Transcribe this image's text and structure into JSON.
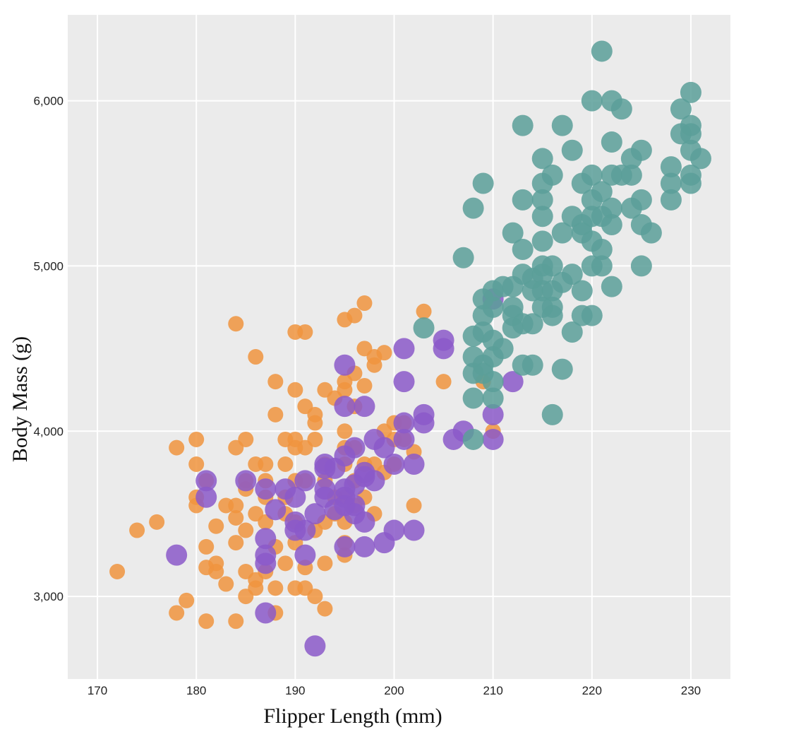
{
  "chart_data": {
    "type": "scatter",
    "title": "",
    "xlabel": "Flipper Length (mm)",
    "ylabel": "Body Mass (g)",
    "xlim": [
      167,
      234
    ],
    "ylim": [
      2500,
      6520
    ],
    "x_ticks": [
      170,
      180,
      190,
      200,
      210,
      220,
      230
    ],
    "x_tick_labels": [
      "170",
      "180",
      "190",
      "200",
      "210",
      "220",
      "230"
    ],
    "y_ticks": [
      3000,
      4000,
      5000,
      6000
    ],
    "y_tick_labels": [
      "3,000",
      "4,000",
      "5,000",
      "6,000"
    ],
    "grid": true,
    "legend": "none",
    "background": "#ebebeb",
    "series": [
      {
        "color": "#f0943e",
        "marker_size": "small",
        "points": [
          [
            172,
            3150
          ],
          [
            174,
            3400
          ],
          [
            176,
            3450
          ],
          [
            178,
            3900
          ],
          [
            178,
            2900
          ],
          [
            179,
            2975
          ],
          [
            180,
            3950
          ],
          [
            180,
            3800
          ],
          [
            180,
            3550
          ],
          [
            180,
            3600
          ],
          [
            181,
            3300
          ],
          [
            181,
            3175
          ],
          [
            181,
            2850
          ],
          [
            181,
            3700
          ],
          [
            182,
            3200
          ],
          [
            182,
            3150
          ],
          [
            182,
            3425
          ],
          [
            183,
            3550
          ],
          [
            183,
            3075
          ],
          [
            184,
            4650
          ],
          [
            184,
            3900
          ],
          [
            184,
            3550
          ],
          [
            184,
            3475
          ],
          [
            184,
            3325
          ],
          [
            184,
            2850
          ],
          [
            185,
            3950
          ],
          [
            185,
            3700
          ],
          [
            185,
            3650
          ],
          [
            185,
            3400
          ],
          [
            185,
            3150
          ],
          [
            185,
            3000
          ],
          [
            186,
            4450
          ],
          [
            186,
            3800
          ],
          [
            186,
            3500
          ],
          [
            186,
            3050
          ],
          [
            186,
            3100
          ],
          [
            187,
            3800
          ],
          [
            187,
            3700
          ],
          [
            187,
            3600
          ],
          [
            187,
            3450
          ],
          [
            187,
            3150
          ],
          [
            188,
            4300
          ],
          [
            188,
            4100
          ],
          [
            188,
            3300
          ],
          [
            188,
            3050
          ],
          [
            188,
            2900
          ],
          [
            189,
            3950
          ],
          [
            189,
            3800
          ],
          [
            189,
            3600
          ],
          [
            189,
            3500
          ],
          [
            189,
            3200
          ],
          [
            190,
            4600
          ],
          [
            190,
            4250
          ],
          [
            190,
            3950
          ],
          [
            190,
            3900
          ],
          [
            190,
            3700
          ],
          [
            190,
            3450
          ],
          [
            190,
            3325
          ],
          [
            190,
            3050
          ],
          [
            191,
            4600
          ],
          [
            191,
            4150
          ],
          [
            191,
            3900
          ],
          [
            191,
            3700
          ],
          [
            191,
            3175
          ],
          [
            191,
            3050
          ],
          [
            192,
            4100
          ],
          [
            192,
            4050
          ],
          [
            192,
            3950
          ],
          [
            192,
            3400
          ],
          [
            192,
            3000
          ],
          [
            193,
            4250
          ],
          [
            193,
            3800
          ],
          [
            193,
            3700
          ],
          [
            193,
            3450
          ],
          [
            193,
            3200
          ],
          [
            193,
            2925
          ],
          [
            194,
            4200
          ],
          [
            194,
            3600
          ],
          [
            194,
            3500
          ],
          [
            195,
            4675
          ],
          [
            195,
            4300
          ],
          [
            195,
            4250
          ],
          [
            195,
            4000
          ],
          [
            195,
            3900
          ],
          [
            195,
            3800
          ],
          [
            195,
            3600
          ],
          [
            195,
            3450
          ],
          [
            195,
            3325
          ],
          [
            195,
            3250
          ],
          [
            196,
            4700
          ],
          [
            196,
            4350
          ],
          [
            196,
            4150
          ],
          [
            196,
            3900
          ],
          [
            196,
            3700
          ],
          [
            196,
            3550
          ],
          [
            197,
            4775
          ],
          [
            197,
            4500
          ],
          [
            197,
            4275
          ],
          [
            197,
            3800
          ],
          [
            197,
            3600
          ],
          [
            198,
            4450
          ],
          [
            198,
            4400
          ],
          [
            198,
            3800
          ],
          [
            198,
            3500
          ],
          [
            199,
            4475
          ],
          [
            199,
            4000
          ],
          [
            199,
            3750
          ],
          [
            200,
            4050
          ],
          [
            200,
            3950
          ],
          [
            200,
            3800
          ],
          [
            201,
            4050
          ],
          [
            201,
            3950
          ],
          [
            202,
            3875
          ],
          [
            202,
            3550
          ],
          [
            203,
            4725
          ],
          [
            205,
            4300
          ],
          [
            209,
            4300
          ],
          [
            210,
            4000
          ]
        ]
      },
      {
        "color": "#8b59c9",
        "marker_size": "medium",
        "points": [
          [
            178,
            3250
          ],
          [
            181,
            3700
          ],
          [
            181,
            3600
          ],
          [
            185,
            3700
          ],
          [
            187,
            3650
          ],
          [
            187,
            3350
          ],
          [
            187,
            3250
          ],
          [
            187,
            3200
          ],
          [
            187,
            2900
          ],
          [
            188,
            3525
          ],
          [
            189,
            3650
          ],
          [
            190,
            3600
          ],
          [
            190,
            3450
          ],
          [
            190,
            3400
          ],
          [
            191,
            3700
          ],
          [
            191,
            3400
          ],
          [
            191,
            3250
          ],
          [
            192,
            3500
          ],
          [
            192,
            2700
          ],
          [
            193,
            3800
          ],
          [
            193,
            3775
          ],
          [
            193,
            3650
          ],
          [
            193,
            3600
          ],
          [
            194,
            3775
          ],
          [
            194,
            3525
          ],
          [
            195,
            4400
          ],
          [
            195,
            4150
          ],
          [
            195,
            3850
          ],
          [
            195,
            3650
          ],
          [
            195,
            3600
          ],
          [
            195,
            3550
          ],
          [
            195,
            3300
          ],
          [
            196,
            3900
          ],
          [
            196,
            3675
          ],
          [
            196,
            3550
          ],
          [
            196,
            3500
          ],
          [
            197,
            4150
          ],
          [
            197,
            3750
          ],
          [
            197,
            3725
          ],
          [
            197,
            3450
          ],
          [
            197,
            3300
          ],
          [
            198,
            3950
          ],
          [
            198,
            3700
          ],
          [
            199,
            3900
          ],
          [
            199,
            3325
          ],
          [
            200,
            3800
          ],
          [
            200,
            3400
          ],
          [
            201,
            4500
          ],
          [
            201,
            4300
          ],
          [
            201,
            4050
          ],
          [
            201,
            3950
          ],
          [
            202,
            3800
          ],
          [
            202,
            3400
          ],
          [
            203,
            4100
          ],
          [
            203,
            4050
          ],
          [
            205,
            4550
          ],
          [
            205,
            4500
          ],
          [
            206,
            3950
          ],
          [
            207,
            4000
          ],
          [
            210,
            4800
          ],
          [
            210,
            4100
          ],
          [
            210,
            3950
          ],
          [
            212,
            4300
          ]
        ]
      },
      {
        "color": "#5a9f99",
        "marker_size": "large",
        "points": [
          [
            203,
            4625
          ],
          [
            207,
            5050
          ],
          [
            208,
            5350
          ],
          [
            208,
            4575
          ],
          [
            208,
            4450
          ],
          [
            208,
            4350
          ],
          [
            208,
            4200
          ],
          [
            208,
            3950
          ],
          [
            209,
            5500
          ],
          [
            209,
            4800
          ],
          [
            209,
            4700
          ],
          [
            209,
            4600
          ],
          [
            209,
            4400
          ],
          [
            209,
            4350
          ],
          [
            210,
            4850
          ],
          [
            210,
            4750
          ],
          [
            210,
            4550
          ],
          [
            210,
            4450
          ],
          [
            210,
            4300
          ],
          [
            210,
            4200
          ],
          [
            211,
            4875
          ],
          [
            211,
            4500
          ],
          [
            212,
            5200
          ],
          [
            212,
            4875
          ],
          [
            212,
            4750
          ],
          [
            212,
            4700
          ],
          [
            212,
            4625
          ],
          [
            213,
            5850
          ],
          [
            213,
            5400
          ],
          [
            213,
            5100
          ],
          [
            213,
            4950
          ],
          [
            213,
            4650
          ],
          [
            213,
            4400
          ],
          [
            214,
            4925
          ],
          [
            214,
            4850
          ],
          [
            214,
            4650
          ],
          [
            214,
            4400
          ],
          [
            215,
            5650
          ],
          [
            215,
            5500
          ],
          [
            215,
            5400
          ],
          [
            215,
            5300
          ],
          [
            215,
            5150
          ],
          [
            215,
            5000
          ],
          [
            215,
            4950
          ],
          [
            215,
            4850
          ],
          [
            215,
            4750
          ],
          [
            216,
            5550
          ],
          [
            216,
            5000
          ],
          [
            216,
            4850
          ],
          [
            216,
            4750
          ],
          [
            216,
            4700
          ],
          [
            216,
            4100
          ],
          [
            217,
            5850
          ],
          [
            217,
            5200
          ],
          [
            217,
            4900
          ],
          [
            217,
            4375
          ],
          [
            218,
            5700
          ],
          [
            218,
            5300
          ],
          [
            218,
            4950
          ],
          [
            218,
            4600
          ],
          [
            219,
            5500
          ],
          [
            219,
            5250
          ],
          [
            219,
            5200
          ],
          [
            219,
            4850
          ],
          [
            219,
            4700
          ],
          [
            220,
            6000
          ],
          [
            220,
            5550
          ],
          [
            220,
            5400
          ],
          [
            220,
            5300
          ],
          [
            220,
            5150
          ],
          [
            220,
            5000
          ],
          [
            220,
            4700
          ],
          [
            221,
            6300
          ],
          [
            221,
            5450
          ],
          [
            221,
            5300
          ],
          [
            221,
            5100
          ],
          [
            221,
            5000
          ],
          [
            222,
            6000
          ],
          [
            222,
            5750
          ],
          [
            222,
            5550
          ],
          [
            222,
            5350
          ],
          [
            222,
            5250
          ],
          [
            222,
            4875
          ],
          [
            223,
            5950
          ],
          [
            223,
            5550
          ],
          [
            224,
            5650
          ],
          [
            224,
            5550
          ],
          [
            224,
            5350
          ],
          [
            225,
            5700
          ],
          [
            225,
            5400
          ],
          [
            225,
            5250
          ],
          [
            225,
            5000
          ],
          [
            226,
            5200
          ],
          [
            228,
            5600
          ],
          [
            228,
            5500
          ],
          [
            228,
            5400
          ],
          [
            229,
            5950
          ],
          [
            229,
            5800
          ],
          [
            230,
            6050
          ],
          [
            230,
            5850
          ],
          [
            230,
            5800
          ],
          [
            230,
            5700
          ],
          [
            230,
            5550
          ],
          [
            230,
            5500
          ],
          [
            231,
            5650
          ]
        ]
      }
    ]
  }
}
